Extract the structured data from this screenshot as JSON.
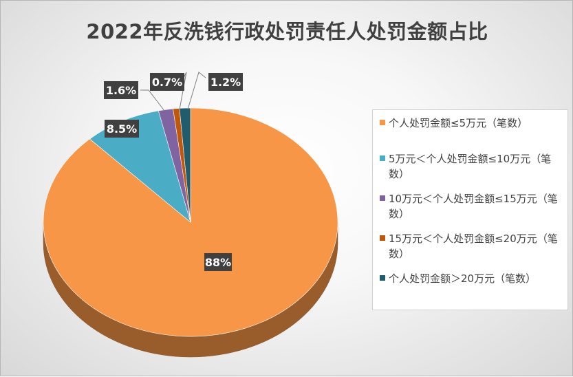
{
  "chart_data": {
    "type": "pie",
    "title": "2022年反洗钱行政处罚责任人处罚金额占比",
    "legend_position": "right",
    "slices": [
      {
        "name": "个人处罚金额≤5万元（笔数）",
        "value": 88,
        "label": "88%",
        "color": "#F79646"
      },
      {
        "name": "5万元＜个人处罚金额≤10万元（笔数）",
        "value": 8.5,
        "label": "8.5%",
        "color": "#4BACC6"
      },
      {
        "name": "10万元＜个人处罚金额≤15万元（笔数）",
        "value": 1.6,
        "label": "1.6%",
        "color": "#8064A2"
      },
      {
        "name": "15万元＜个人处罚金额≤20万元（笔数）",
        "value": 0.7,
        "label": "0.7%",
        "color": "#C0580C"
      },
      {
        "name": "个人处罚金额＞20万元（笔数）",
        "value": 1.2,
        "label": "1.2%",
        "color": "#1F5C6E"
      }
    ]
  }
}
